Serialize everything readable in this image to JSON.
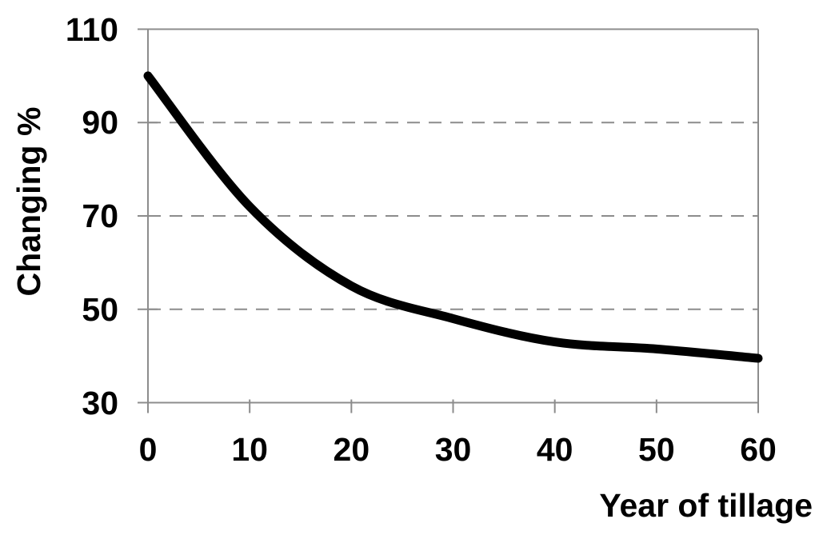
{
  "chart_data": {
    "type": "line",
    "title": "",
    "xlabel": "Year of tillage",
    "ylabel": "Changing %",
    "x": [
      0,
      10,
      20,
      30,
      40,
      50,
      60
    ],
    "series": [
      {
        "name": "Changing %",
        "values": [
          100,
          72,
          55,
          48,
          43,
          41.5,
          39.5
        ]
      }
    ],
    "xlim": [
      0,
      60
    ],
    "ylim": [
      30,
      110
    ],
    "x_ticks": [
      0,
      10,
      20,
      30,
      40,
      50,
      60
    ],
    "y_ticks": [
      30,
      50,
      70,
      90,
      110
    ],
    "gridlines": {
      "dashed_y_values": [
        50,
        70,
        90
      ],
      "style": "dashed"
    },
    "legend_position": "none",
    "line_color": "#000000",
    "line_width": 11,
    "smooth_line": true,
    "axis_color": "#8c8c8c",
    "grid_color": "#8c8c8c",
    "background_color": "#ffffff"
  }
}
